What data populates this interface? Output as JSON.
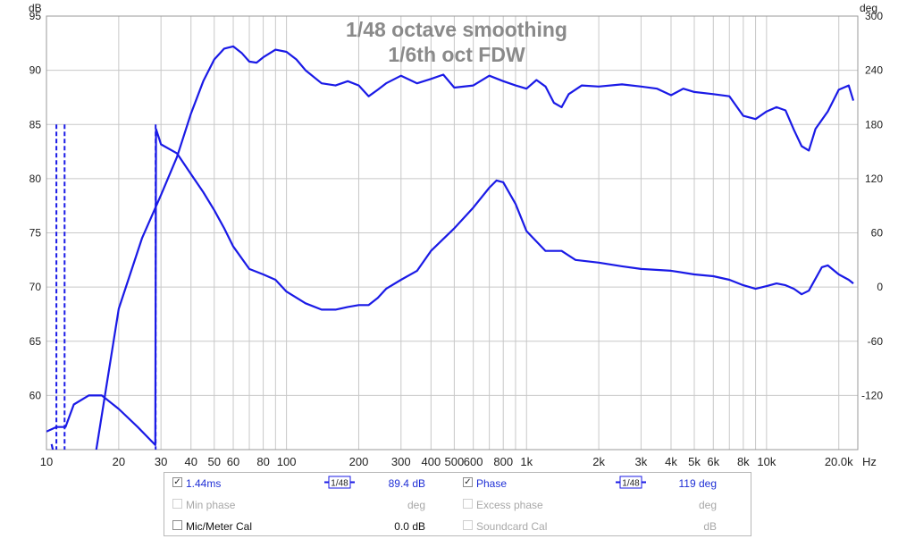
{
  "chart_data": {
    "type": "line",
    "title": "1/48 octave smoothing",
    "subtitle": "1/6th oct FDW",
    "x_scale": "log",
    "xlim": [
      10,
      24000
    ],
    "x_ticks": [
      10,
      20,
      30,
      40,
      50,
      60,
      80,
      100,
      200,
      300,
      400,
      500,
      600,
      800,
      1000,
      2000,
      3000,
      4000,
      5000,
      6000,
      8000,
      10000,
      20000
    ],
    "x_tick_labels": [
      "10",
      "20",
      "30",
      "40",
      "50",
      "60",
      "80",
      "100",
      "200",
      "300",
      "400",
      "500",
      "600",
      "800",
      "1k",
      "2k",
      "3k",
      "4k",
      "5k",
      "6k",
      "8k",
      "10k",
      "20.0k"
    ],
    "x_unit": "Hz",
    "ylabel_left": "dB",
    "ylim_left": [
      55,
      95
    ],
    "y_ticks_left": [
      60,
      65,
      70,
      75,
      80,
      85,
      90,
      95
    ],
    "ylabel_right": "deg",
    "ylim_right": [
      -180,
      300
    ],
    "y_ticks_right": [
      -120,
      -60,
      0,
      60,
      120,
      180,
      240,
      300
    ],
    "grid": true,
    "series": [
      {
        "name": "1.44ms",
        "axis": "left",
        "color": "#1a1ae6",
        "x": [
          10.5,
          12,
          14,
          16,
          20,
          25,
          30,
          35,
          40,
          45,
          50,
          55,
          60,
          65,
          70,
          75,
          80,
          90,
          100,
          110,
          120,
          140,
          160,
          180,
          200,
          220,
          240,
          260,
          300,
          350,
          400,
          450,
          500,
          600,
          700,
          800,
          900,
          1000,
          1100,
          1200,
          1300,
          1400,
          1500,
          1700,
          2000,
          2500,
          3000,
          3500,
          4000,
          4500,
          5000,
          6000,
          7000,
          8000,
          9000,
          10000,
          11000,
          12000,
          13000,
          14000,
          15000,
          16000,
          18000,
          20000,
          22000,
          23000
        ],
        "values": [
          55.5,
          50,
          52,
          54.5,
          68,
          74.5,
          78.5,
          82,
          86,
          89,
          91,
          92,
          92.2,
          91.6,
          90.8,
          90.7,
          91.2,
          91.9,
          91.7,
          91,
          90,
          88.8,
          88.6,
          89,
          88.6,
          87.6,
          88.2,
          88.8,
          89.5,
          88.8,
          89.2,
          89.6,
          88.4,
          88.6,
          89.5,
          89.0,
          88.6,
          88.3,
          89.1,
          88.5,
          87.0,
          86.6,
          87.8,
          88.6,
          88.5,
          88.7,
          88.5,
          88.3,
          87.7,
          88.3,
          88.0,
          87.8,
          87.6,
          85.8,
          85.5,
          86.2,
          86.6,
          86.3,
          84.5,
          83.0,
          82.6,
          84.6,
          86.2,
          88.2,
          88.6,
          87.2
        ]
      },
      {
        "name": "Phase",
        "axis": "right",
        "color": "#1a1ae6",
        "x": [
          10,
          11,
          12,
          13,
          15,
          17,
          20,
          24,
          28.4,
          28.6,
          30,
          35,
          40,
          45,
          50,
          55,
          60,
          70,
          80,
          90,
          100,
          120,
          140,
          160,
          180,
          200,
          220,
          240,
          260,
          300,
          350,
          400,
          500,
          600,
          700,
          750,
          800,
          900,
          1000,
          1200,
          1400,
          1600,
          2000,
          2500,
          3000,
          4000,
          5000,
          6000,
          7000,
          8000,
          9000,
          10000,
          11000,
          12000,
          13000,
          14000,
          15000,
          17000,
          18000,
          20000,
          22000,
          23000
        ],
        "values": [
          -160,
          -155,
          -155,
          -130,
          -120,
          -120,
          -135,
          -155,
          -175,
          175,
          158,
          148,
          125,
          105,
          85,
          65,
          45,
          20,
          14,
          8,
          -5,
          -18,
          -25,
          -25,
          -22,
          -20,
          -20,
          -12,
          -2,
          8,
          18,
          40,
          65,
          88,
          110,
          118,
          116,
          92,
          62,
          40,
          40,
          30,
          27,
          23,
          20,
          18,
          14,
          12,
          8,
          2,
          -2,
          1,
          4,
          2,
          -2,
          -8,
          -4,
          22,
          24,
          14,
          8,
          4
        ]
      }
    ]
  },
  "legend": {
    "row1": {
      "left_label": "1.44ms",
      "left_value": "89.4 dB",
      "right_label": "Phase",
      "right_value": "119 deg",
      "smoothing_icon": "1/48-smoothing-icon"
    },
    "row2": {
      "left_label": "Min phase",
      "left_value": "deg",
      "right_label": "Excess phase",
      "right_value": "deg"
    },
    "row3": {
      "left_label": "Mic/Meter Cal",
      "left_value": "0.0 dB",
      "right_label": "Soundcard Cal",
      "right_value": "dB"
    }
  },
  "colors": {
    "trace": "#1a1ae6",
    "grid": "#c8c8c8",
    "title": "#8a8a8a",
    "axis_text": "#222222"
  }
}
